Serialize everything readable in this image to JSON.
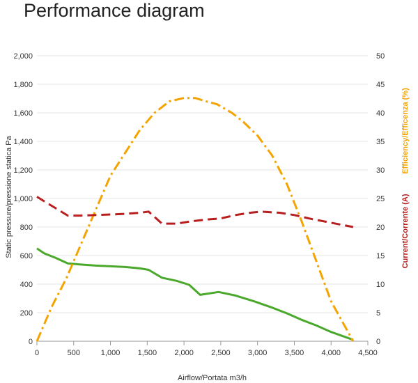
{
  "page": {
    "title": "Performance diagram"
  },
  "chart_data": {
    "type": "line",
    "title": "Performance diagram",
    "xlabel": "Airflow/Portata m3/h",
    "ylabel": "Static pressure/pressione statica Pa",
    "y2label_efficiency": "Efficiency/Efficenza (%)",
    "y2label_current": "Current/Corrente (A)",
    "xlim": [
      0,
      4500
    ],
    "ylim": [
      0,
      2000
    ],
    "y2lim": [
      0,
      50
    ],
    "x_ticks": [
      0,
      500,
      1000,
      1500,
      2000,
      2500,
      3000,
      3500,
      4000,
      4500
    ],
    "x_tick_labels": [
      "0",
      "500",
      "1,000",
      "1,500",
      "2,000",
      "2,500",
      "3,000",
      "3,500",
      "4,000",
      "4,500"
    ],
    "y_ticks": [
      0,
      200,
      400,
      600,
      800,
      1000,
      1200,
      1400,
      1600,
      1800,
      2000
    ],
    "y_tick_labels": [
      "0",
      "200",
      "400",
      "600",
      "800",
      "1,000",
      "1,200",
      "1,400",
      "1,600",
      "1,800",
      "2,000"
    ],
    "y2_ticks": [
      0,
      5,
      10,
      15,
      20,
      25,
      30,
      35,
      40,
      45,
      50
    ],
    "y2_tick_labels": [
      "0",
      "5",
      "10",
      "15",
      "20",
      "25",
      "30",
      "35",
      "40",
      "45",
      "50"
    ],
    "grid": "horizontal",
    "colors": {
      "pressure": "#4aa82b",
      "efficiency": "#f5a300",
      "current": "#b81e1e",
      "efficiency_label": "#f5a300",
      "current_label": "#b81e1e",
      "grid": "#e4e4e4",
      "axis": "#999999"
    },
    "series": [
      {
        "axis": "left",
        "style": "solid",
        "color": "#4aa82b",
        "x": [
          0,
          100,
          250,
          420,
          600,
          800,
          1000,
          1200,
          1400,
          1520,
          1700,
          1900,
          2070,
          2220,
          2470,
          2700,
          2950,
          3200,
          3400,
          3600,
          3800,
          4000,
          4300
        ],
        "y": [
          650,
          615,
          585,
          545,
          537,
          530,
          525,
          520,
          510,
          500,
          445,
          423,
          395,
          325,
          345,
          320,
          280,
          235,
          195,
          150,
          110,
          65,
          10
        ]
      },
      {
        "axis": "right",
        "style": "dash-dot",
        "color": "#f5a300",
        "x": [
          0,
          200,
          400,
          600,
          800,
          1000,
          1200,
          1400,
          1600,
          1800,
          2000,
          2150,
          2300,
          2450,
          2650,
          2800,
          3000,
          3200,
          3400,
          3600,
          3800,
          4000,
          4300
        ],
        "y": [
          0,
          6,
          11,
          17,
          23,
          29,
          33,
          37,
          40,
          42,
          42.6,
          42.6,
          42,
          41.5,
          40,
          38.5,
          36,
          32.5,
          27.5,
          21,
          14,
          7,
          0
        ]
      },
      {
        "axis": "right",
        "style": "dashed",
        "color": "#b81e1e",
        "x": [
          0,
          100,
          420,
          600,
          800,
          1000,
          1200,
          1400,
          1520,
          1700,
          1900,
          2100,
          2300,
          2500,
          2700,
          2900,
          3050,
          3300,
          3500,
          3700,
          3900,
          4300
        ],
        "y": [
          25.3,
          24.5,
          22,
          22,
          22.1,
          22.2,
          22.3,
          22.5,
          22.7,
          20.6,
          20.6,
          21,
          21.3,
          21.5,
          22.1,
          22.5,
          22.7,
          22.5,
          22.1,
          21.5,
          21,
          20
        ]
      }
    ]
  }
}
